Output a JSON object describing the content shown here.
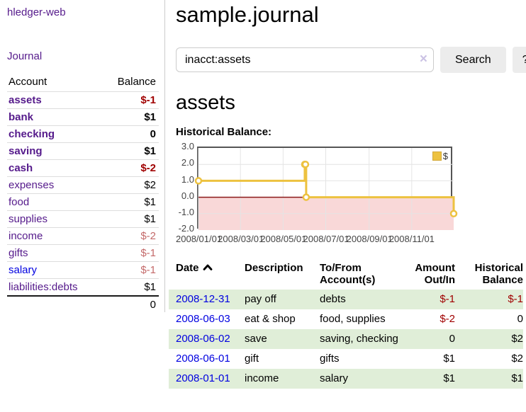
{
  "colors": {
    "link_purple": "#551a8b",
    "link_blue": "#0000e0",
    "negative_strong": "#a00000",
    "negative_muted": "#c46a6a",
    "row_green": "#e0eed8",
    "button_gray": "#ececec"
  },
  "sidebar": {
    "brand": "hledger-web",
    "nav": {
      "journal": "Journal"
    },
    "table": {
      "account_header": "Account",
      "balance_header": "Balance"
    },
    "accounts": [
      {
        "name": "assets",
        "balance": "$-1"
      },
      {
        "name": "bank",
        "balance": "$1"
      },
      {
        "name": "checking",
        "balance": "0"
      },
      {
        "name": "saving",
        "balance": "$1"
      },
      {
        "name": "cash",
        "balance": "$-2"
      },
      {
        "name": "expenses",
        "balance": "$2"
      },
      {
        "name": "food",
        "balance": "$1"
      },
      {
        "name": "supplies",
        "balance": "$1"
      },
      {
        "name": "income",
        "balance": "$-2"
      },
      {
        "name": "gifts",
        "balance": "$-1"
      },
      {
        "name": "salary",
        "balance": "$-1"
      },
      {
        "name": "liabilities:debts",
        "balance": "$1"
      }
    ],
    "total": "0"
  },
  "header": {
    "title": "sample.journal"
  },
  "search": {
    "value": "inacct:assets",
    "clear_icon": "×",
    "button_label": "Search",
    "help_label": "?"
  },
  "account_page": {
    "title": "assets",
    "chart_label": "Historical Balance:"
  },
  "chart_data": {
    "type": "line",
    "step": true,
    "title": "Historical Balance",
    "x_range": [
      "2008-01-01",
      "2008-12-31"
    ],
    "ylim": [
      -2,
      3
    ],
    "grid": true,
    "legend": {
      "label": "$",
      "position": "top-right"
    },
    "y_ticks": [
      "3.0",
      "2.0",
      "1.0",
      "0.0",
      "-1.0",
      "-2.0"
    ],
    "x_ticks": [
      {
        "date": "2008-01-01",
        "label": "2008/01/01"
      },
      {
        "date": "2008-03-01",
        "label": "2008/03/01"
      },
      {
        "date": "2008-05-01",
        "label": "2008/05/01"
      },
      {
        "date": "2008-07-01",
        "label": "2008/07/01"
      },
      {
        "date": "2008-09-01",
        "label": "2008/09/01"
      },
      {
        "date": "2008-11-01",
        "label": "2008/11/01"
      }
    ],
    "series": [
      {
        "name": "$",
        "color": "#edc240",
        "points": [
          [
            "2008-01-01",
            1
          ],
          [
            "2008-06-01",
            2
          ],
          [
            "2008-06-02",
            2
          ],
          [
            "2008-06-03",
            0
          ],
          [
            "2008-12-31",
            -1
          ]
        ]
      }
    ],
    "negative_region_color": "#f9d8d8",
    "zero_line_color": "#8b1a1a"
  },
  "register": {
    "headers": {
      "date": "Date",
      "description": "Description",
      "tofrom": "To/From Account(s)",
      "amount": "Amount Out/In",
      "balance": "Historical Balance"
    },
    "rows": [
      {
        "date": "2008-12-31",
        "description": "pay off",
        "accounts": "debts",
        "amount": "$-1",
        "balance": "$-1"
      },
      {
        "date": "2008-06-03",
        "description": "eat & shop",
        "accounts": "food, supplies",
        "amount": "$-2",
        "balance": "0"
      },
      {
        "date": "2008-06-02",
        "description": "save",
        "accounts": "saving, checking",
        "amount": "0",
        "balance": "$2"
      },
      {
        "date": "2008-06-01",
        "description": "gift",
        "accounts": "gifts",
        "amount": "$1",
        "balance": "$2"
      },
      {
        "date": "2008-01-01",
        "description": "income",
        "accounts": "salary",
        "amount": "$1",
        "balance": "$1"
      }
    ]
  }
}
